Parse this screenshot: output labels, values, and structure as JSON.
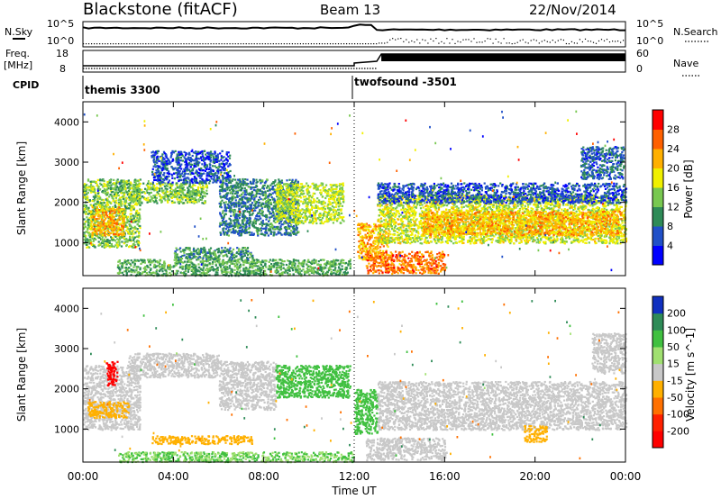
{
  "header": {
    "station": "Blackstone (fitACF)",
    "beam": "Beam 13",
    "date": "22/Nov/2014"
  },
  "summary_panels": {
    "nsky_label": "N.Sky",
    "nsearch_label": "N.Search",
    "freq_label": "Freq.",
    "freq_unit": "[MHz]",
    "nave_label": "Nave",
    "cpid_label": "CPID",
    "left_top_tick": "10^5",
    "left_bottom_tick": "10^0",
    "right_top_tick": "10^5",
    "right_bottom_tick": "10^0",
    "freq_ticks": [
      "18",
      "8"
    ],
    "nave_ticks": [
      "60",
      "0"
    ],
    "cpid_segments": [
      {
        "label": "themis 3300",
        "start_hour": 0
      },
      {
        "label": "twofsound -3501",
        "start_hour": 12
      }
    ]
  },
  "chart_data": [
    {
      "type": "heatmap",
      "title": "Power",
      "ylabel": "Slant Range [km]",
      "xlim": [
        0,
        24
      ],
      "ylim": [
        180,
        4500
      ],
      "yticks": [
        "1000",
        "2000",
        "3000",
        "4000"
      ],
      "colorbar_label": "Power [dB]",
      "colorbar_ticks": [
        "4",
        "8",
        "12",
        "16",
        "20",
        "24",
        "28"
      ],
      "colorbar_colors": [
        "#0000ff",
        "#2050c8",
        "#2e8b57",
        "#78c850",
        "#f0f000",
        "#ffb000",
        "#ff6000",
        "#ff0000"
      ],
      "regions": [
        {
          "h0": 0.0,
          "h1": 2.5,
          "r0": 900,
          "r1": 2600,
          "level": 14
        },
        {
          "h0": 0.3,
          "h1": 1.8,
          "r0": 1200,
          "r1": 1900,
          "level": 22
        },
        {
          "h0": 2.0,
          "h1": 5.5,
          "r0": 2000,
          "r1": 2500,
          "level": 14
        },
        {
          "h0": 3.0,
          "h1": 6.5,
          "r0": 2500,
          "r1": 3300,
          "level": 6
        },
        {
          "h0": 6.0,
          "h1": 9.5,
          "r0": 1200,
          "r1": 2600,
          "level": 9
        },
        {
          "h0": 8.5,
          "h1": 11.5,
          "r0": 1500,
          "r1": 2500,
          "level": 16
        },
        {
          "h0": 1.5,
          "h1": 11.8,
          "r0": 200,
          "r1": 600,
          "level": 12
        },
        {
          "h0": 4.0,
          "h1": 7.5,
          "r0": 600,
          "r1": 900,
          "level": 10
        },
        {
          "h0": 12.1,
          "h1": 13.5,
          "r0": 600,
          "r1": 1500,
          "level": 22
        },
        {
          "h0": 12.5,
          "h1": 16.0,
          "r0": 250,
          "r1": 800,
          "level": 25
        },
        {
          "h0": 13.0,
          "h1": 24.0,
          "r0": 1000,
          "r1": 2200,
          "level": 17
        },
        {
          "h0": 15.0,
          "h1": 23.8,
          "r0": 1200,
          "r1": 1800,
          "level": 22
        },
        {
          "h0": 13.0,
          "h1": 24.0,
          "r0": 2000,
          "r1": 2500,
          "level": 6
        },
        {
          "h0": 22.0,
          "h1": 23.9,
          "r0": 2600,
          "r1": 3400,
          "level": 7
        }
      ]
    },
    {
      "type": "heatmap",
      "title": "Velocity",
      "ylabel": "Slant Range [km]",
      "xlabel": "Time UT",
      "xlim": [
        0,
        24
      ],
      "ylim": [
        180,
        4500
      ],
      "xticks": [
        "00:00",
        "04:00",
        "08:00",
        "12:00",
        "16:00",
        "20:00",
        "00:00"
      ],
      "yticks": [
        "1000",
        "2000",
        "3000",
        "4000"
      ],
      "colorbar_label": "Velocity [m s^-1]",
      "colorbar_ticks": [
        "200",
        "100",
        "50",
        "15",
        "-15",
        "-50",
        "-100",
        "-200"
      ],
      "colorbar_colors": [
        "#1030c0",
        "#2e8b57",
        "#40c040",
        "#a0e070",
        "#c8c8c8",
        "#ffb000",
        "#ff7000",
        "#ff2000",
        "#ff0000"
      ],
      "regions": [
        {
          "h0": 0.0,
          "h1": 2.5,
          "r0": 1000,
          "r1": 2600,
          "level": 0
        },
        {
          "h0": 1.0,
          "h1": 1.5,
          "r0": 2100,
          "r1": 2700,
          "level": -200
        },
        {
          "h0": 0.2,
          "h1": 2.0,
          "r0": 1300,
          "r1": 1700,
          "level": -50
        },
        {
          "h0": 2.0,
          "h1": 6.0,
          "r0": 2300,
          "r1": 2900,
          "level": 0
        },
        {
          "h0": 3.0,
          "h1": 7.5,
          "r0": 650,
          "r1": 850,
          "level": -50
        },
        {
          "h0": 6.0,
          "h1": 8.5,
          "r0": 1500,
          "r1": 2700,
          "level": 0
        },
        {
          "h0": 8.5,
          "h1": 11.8,
          "r0": 1800,
          "r1": 2600,
          "level": 60
        },
        {
          "h0": 1.5,
          "h1": 12.0,
          "r0": 200,
          "r1": 450,
          "level": 30
        },
        {
          "h0": 12.0,
          "h1": 13.0,
          "r0": 900,
          "r1": 2000,
          "level": 60
        },
        {
          "h0": 12.5,
          "h1": 16.0,
          "r0": 250,
          "r1": 800,
          "level": 0
        },
        {
          "h0": 13.0,
          "h1": 24.0,
          "r0": 1000,
          "r1": 2200,
          "level": 0
        },
        {
          "h0": 19.5,
          "h1": 20.5,
          "r0": 700,
          "r1": 1100,
          "level": -50
        },
        {
          "h0": 22.5,
          "h1": 24.0,
          "r0": 2400,
          "r1": 3400,
          "level": 0
        }
      ]
    }
  ]
}
